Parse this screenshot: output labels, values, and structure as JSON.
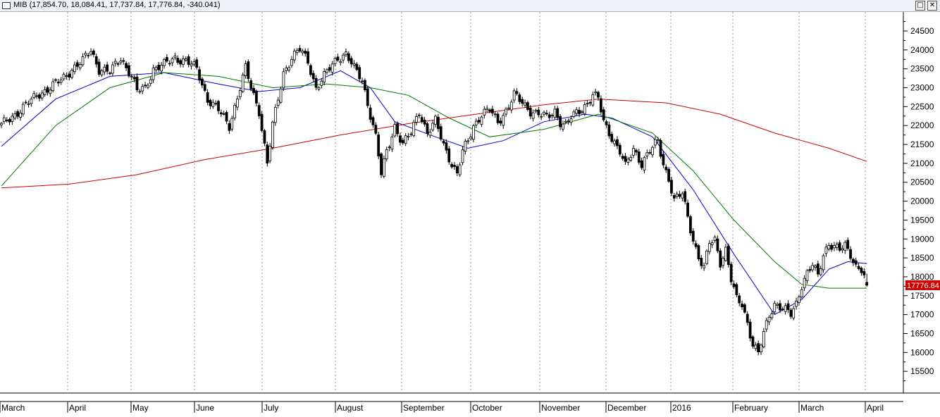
{
  "window": {
    "title": "MIB (17,854.70, 18,084.41, 17,737.84, 17,776.84, -340.041)",
    "restore_glyph": "□",
    "close_glyph": "✕"
  },
  "chart_data": {
    "type": "candlestick",
    "title": "MIB (17,854.70, 18,084.41, 17,737.84, 17,776.84, -340.041)",
    "ylim": [
      15000,
      24900
    ],
    "yticks": [
      15500,
      16000,
      16500,
      17000,
      17500,
      18000,
      18500,
      19000,
      19500,
      20000,
      20500,
      21000,
      21500,
      22000,
      22500,
      23000,
      23500,
      24000,
      24500
    ],
    "x_labels": [
      "March",
      "April",
      "May",
      "June",
      "July",
      "August",
      "September",
      "October",
      "November",
      "December",
      "2016",
      "February",
      "March",
      "April"
    ],
    "last_value_label": "17776.84",
    "last_ohlc": {
      "open": 17854.7,
      "high": 18084.41,
      "low": 17737.84,
      "close": 17776.84,
      "change": -340.041
    },
    "grid": "vertical dotted at month starts",
    "colors": {
      "up_candle": "#ffffff",
      "down_candle": "#000000",
      "ma_short": "#0000cc",
      "ma_medium": "#007700",
      "ma_long": "#cc0000",
      "last_label_bg": "#cc0000"
    },
    "anchors": [
      [
        0,
        22000
      ],
      [
        5,
        22300
      ],
      [
        10,
        22600
      ],
      [
        14,
        22850
      ],
      [
        18,
        23000
      ],
      [
        22,
        23200
      ],
      [
        26,
        23500
      ],
      [
        30,
        23700
      ],
      [
        33,
        24000
      ],
      [
        36,
        23500
      ],
      [
        40,
        23400
      ],
      [
        44,
        23800
      ],
      [
        48,
        23300
      ],
      [
        50,
        22900
      ],
      [
        53,
        23000
      ],
      [
        56,
        23500
      ],
      [
        60,
        23600
      ],
      [
        64,
        23800
      ],
      [
        68,
        23700
      ],
      [
        72,
        23500
      ],
      [
        76,
        22700
      ],
      [
        80,
        22400
      ],
      [
        84,
        22000
      ],
      [
        88,
        23000
      ],
      [
        90,
        23500
      ],
      [
        92,
        23000
      ],
      [
        95,
        22400
      ],
      [
        98,
        21000
      ],
      [
        100,
        22000
      ],
      [
        104,
        23400
      ],
      [
        107,
        23800
      ],
      [
        110,
        24000
      ],
      [
        113,
        23700
      ],
      [
        116,
        23000
      ],
      [
        120,
        23400
      ],
      [
        124,
        23800
      ],
      [
        127,
        23900
      ],
      [
        130,
        23500
      ],
      [
        133,
        23200
      ],
      [
        136,
        22300
      ],
      [
        138,
        21700
      ],
      [
        140,
        20700
      ],
      [
        142,
        21300
      ],
      [
        145,
        22000
      ],
      [
        148,
        21500
      ],
      [
        151,
        21800
      ],
      [
        154,
        22400
      ],
      [
        157,
        21800
      ],
      [
        160,
        22100
      ],
      [
        163,
        21500
      ],
      [
        166,
        21000
      ],
      [
        168,
        20700
      ],
      [
        170,
        21300
      ],
      [
        172,
        21600
      ],
      [
        174,
        22000
      ],
      [
        177,
        22300
      ],
      [
        180,
        22400
      ],
      [
        183,
        22100
      ],
      [
        186,
        22400
      ],
      [
        189,
        22800
      ],
      [
        192,
        22600
      ],
      [
        195,
        22400
      ],
      [
        198,
        22300
      ],
      [
        201,
        22200
      ],
      [
        204,
        22400
      ],
      [
        206,
        22100
      ],
      [
        208,
        22000
      ],
      [
        210,
        22200
      ],
      [
        213,
        22400
      ],
      [
        216,
        22600
      ],
      [
        218,
        22800
      ],
      [
        220,
        22700
      ],
      [
        222,
        22100
      ],
      [
        225,
        21700
      ],
      [
        228,
        21300
      ],
      [
        230,
        20900
      ],
      [
        233,
        21400
      ],
      [
        236,
        21000
      ],
      [
        239,
        21300
      ],
      [
        242,
        21600
      ],
      [
        244,
        21000
      ],
      [
        246,
        20600
      ],
      [
        248,
        20000
      ],
      [
        251,
        20200
      ],
      [
        253,
        19600
      ],
      [
        255,
        19000
      ],
      [
        257,
        18500
      ],
      [
        259,
        18200
      ],
      [
        261,
        18900
      ],
      [
        263,
        19000
      ],
      [
        265,
        18400
      ],
      [
        267,
        18700
      ],
      [
        269,
        17900
      ],
      [
        271,
        17400
      ],
      [
        273,
        17300
      ],
      [
        275,
        16800
      ],
      [
        277,
        16200
      ],
      [
        279,
        15950
      ],
      [
        281,
        16500
      ],
      [
        283,
        17000
      ],
      [
        285,
        17300
      ],
      [
        287,
        17200
      ],
      [
        289,
        17100
      ],
      [
        291,
        17000
      ],
      [
        293,
        17300
      ],
      [
        295,
        17800
      ],
      [
        297,
        18100
      ],
      [
        299,
        18300
      ],
      [
        301,
        18000
      ],
      [
        303,
        18600
      ],
      [
        305,
        18900
      ],
      [
        307,
        18800
      ],
      [
        309,
        18700
      ],
      [
        311,
        18800
      ],
      [
        313,
        18600
      ],
      [
        315,
        18300
      ],
      [
        317,
        18200
      ],
      [
        319,
        17780
      ]
    ],
    "moving_averages": [
      {
        "color_key": "ma_short",
        "points": [
          [
            0,
            21450
          ],
          [
            20,
            22700
          ],
          [
            40,
            23300
          ],
          [
            60,
            23400
          ],
          [
            80,
            23100
          ],
          [
            95,
            22900
          ],
          [
            110,
            23000
          ],
          [
            125,
            23450
          ],
          [
            136,
            23000
          ],
          [
            145,
            22100
          ],
          [
            160,
            21700
          ],
          [
            172,
            21400
          ],
          [
            185,
            21600
          ],
          [
            200,
            22100
          ],
          [
            215,
            22300
          ],
          [
            225,
            22200
          ],
          [
            240,
            21700
          ],
          [
            255,
            20300
          ],
          [
            270,
            18600
          ],
          [
            285,
            17000
          ],
          [
            295,
            17400
          ],
          [
            305,
            18200
          ],
          [
            312,
            18400
          ],
          [
            319,
            18350
          ]
        ]
      },
      {
        "color_key": "ma_medium",
        "points": [
          [
            0,
            20400
          ],
          [
            20,
            22000
          ],
          [
            40,
            23000
          ],
          [
            60,
            23400
          ],
          [
            80,
            23300
          ],
          [
            100,
            23000
          ],
          [
            120,
            23100
          ],
          [
            136,
            23000
          ],
          [
            150,
            22800
          ],
          [
            165,
            22200
          ],
          [
            180,
            21700
          ],
          [
            200,
            21900
          ],
          [
            220,
            22300
          ],
          [
            240,
            21800
          ],
          [
            255,
            20800
          ],
          [
            270,
            19500
          ],
          [
            285,
            18400
          ],
          [
            295,
            17800
          ],
          [
            305,
            17700
          ],
          [
            319,
            17700
          ]
        ]
      },
      {
        "color_key": "ma_long",
        "points": [
          [
            0,
            20350
          ],
          [
            25,
            20450
          ],
          [
            50,
            20700
          ],
          [
            75,
            21100
          ],
          [
            100,
            21400
          ],
          [
            125,
            21750
          ],
          [
            150,
            22050
          ],
          [
            175,
            22300
          ],
          [
            200,
            22550
          ],
          [
            220,
            22700
          ],
          [
            245,
            22600
          ],
          [
            265,
            22300
          ],
          [
            285,
            21800
          ],
          [
            305,
            21400
          ],
          [
            319,
            21050
          ]
        ]
      }
    ]
  }
}
